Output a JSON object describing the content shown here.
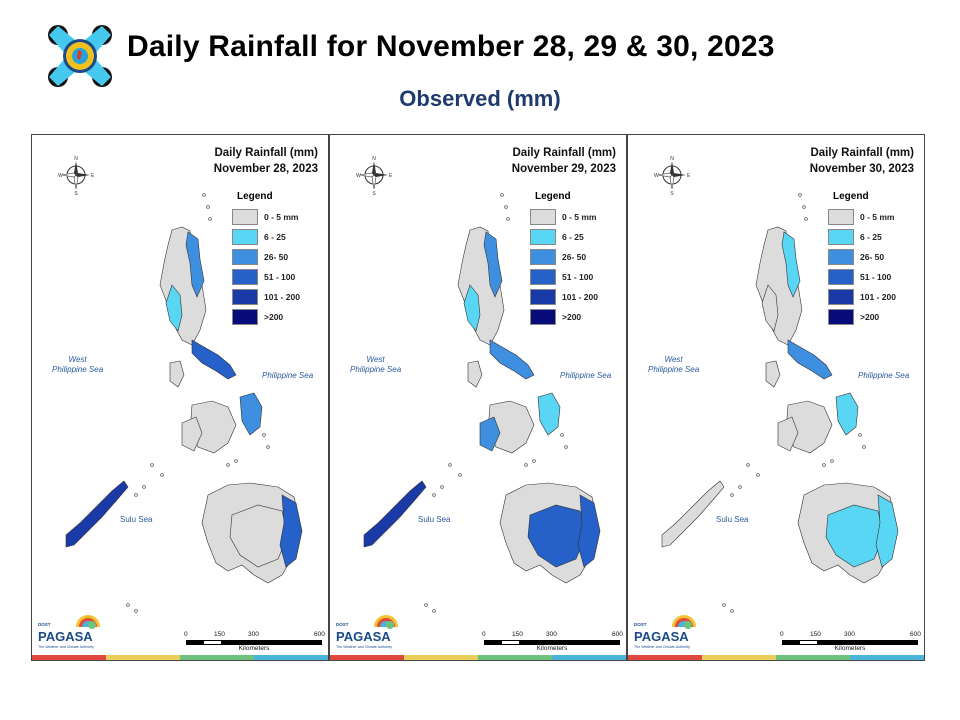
{
  "header": {
    "title": "Daily Rainfall for November 28, 29 & 30, 2023",
    "subtitle": "Observed (mm)"
  },
  "legend": {
    "title": "Legend",
    "classes": [
      {
        "label": "0 - 5 mm",
        "color": "#dcdcdc"
      },
      {
        "label": "6 - 25",
        "color": "#5ad6f5"
      },
      {
        "label": "26- 50",
        "color": "#3f8fe0"
      },
      {
        "label": "51 - 100",
        "color": "#2660c9"
      },
      {
        "label": "101 - 200",
        "color": "#1a3aa8"
      },
      {
        "label": ">200",
        "color": "#080c7a"
      }
    ]
  },
  "labels": {
    "west_sea_1": "West",
    "west_sea_2": "Philippine Sea",
    "east_sea": "Philippine Sea",
    "sulu_sea": "Sulu Sea",
    "compass_n": "N",
    "compass_s": "S",
    "compass_e": "E",
    "compass_w": "W"
  },
  "scale": {
    "ticks": [
      "0",
      "150",
      "300",
      "600"
    ],
    "unit": "Kilometers"
  },
  "brand": {
    "small": "DOST",
    "name": "PAGASA",
    "tagline": "The Weather and Climate Authority"
  },
  "footer_colors": [
    "#e0483f",
    "#ead05a",
    "#6ec37e",
    "#4ab3d8"
  ],
  "panels": [
    {
      "title_line1": "Daily Rainfall (mm)",
      "title_line2": "November 28, 2023",
      "rain": {
        "ne_luzon": 2,
        "w_luzon": 1,
        "bicol": 3,
        "samar": 2,
        "e_mindanao": 3,
        "palawan": 4,
        "w_visayas": 0,
        "mindanao": 0
      }
    },
    {
      "title_line1": "Daily Rainfall (mm)",
      "title_line2": "November 29, 2023",
      "rain": {
        "ne_luzon": 2,
        "w_luzon": 1,
        "bicol": 2,
        "samar": 1,
        "e_mindanao": 3,
        "palawan": 4,
        "w_visayas": 2,
        "mindanao": 3
      }
    },
    {
      "title_line1": "Daily Rainfall (mm)",
      "title_line2": "November 30, 2023",
      "rain": {
        "ne_luzon": 1,
        "w_luzon": 0,
        "bicol": 2,
        "samar": 1,
        "e_mindanao": 1,
        "palawan": 0,
        "w_visayas": 0,
        "mindanao": 1
      }
    }
  ]
}
